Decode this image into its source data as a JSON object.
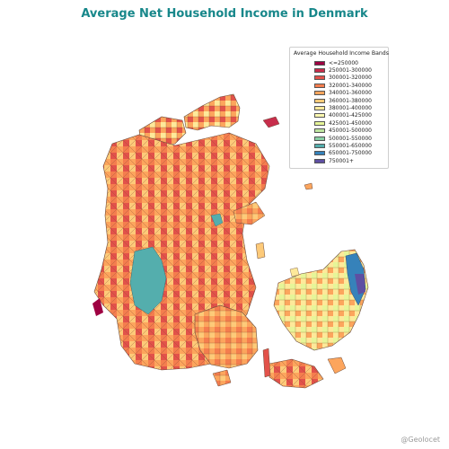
{
  "title": "Average Net Household Income in Denmark",
  "legend": {
    "title": "Average Household Income Bands",
    "items": [
      {
        "label": "<=250000",
        "color": "#9e0142"
      },
      {
        "label": "250001-300000",
        "color": "#c72d4b"
      },
      {
        "label": "300001-320000",
        "color": "#e2524a"
      },
      {
        "label": "320001-340000",
        "color": "#f47d4e"
      },
      {
        "label": "340001-360000",
        "color": "#fca55d"
      },
      {
        "label": "360001-380000",
        "color": "#fdca79"
      },
      {
        "label": "380001-400000",
        "color": "#fee99a"
      },
      {
        "label": "400001-425000",
        "color": "#fbf8b0"
      },
      {
        "label": "425001-450000",
        "color": "#e6f598"
      },
      {
        "label": "450001-500000",
        "color": "#bee5a0"
      },
      {
        "label": "500001-550000",
        "color": "#88cfa4"
      },
      {
        "label": "550001-650000",
        "color": "#54aead"
      },
      {
        "label": "650001-750000",
        "color": "#3682ba"
      },
      {
        "label": "750001+",
        "color": "#5e4fa2"
      }
    ]
  },
  "credit": "@Geolocet"
}
